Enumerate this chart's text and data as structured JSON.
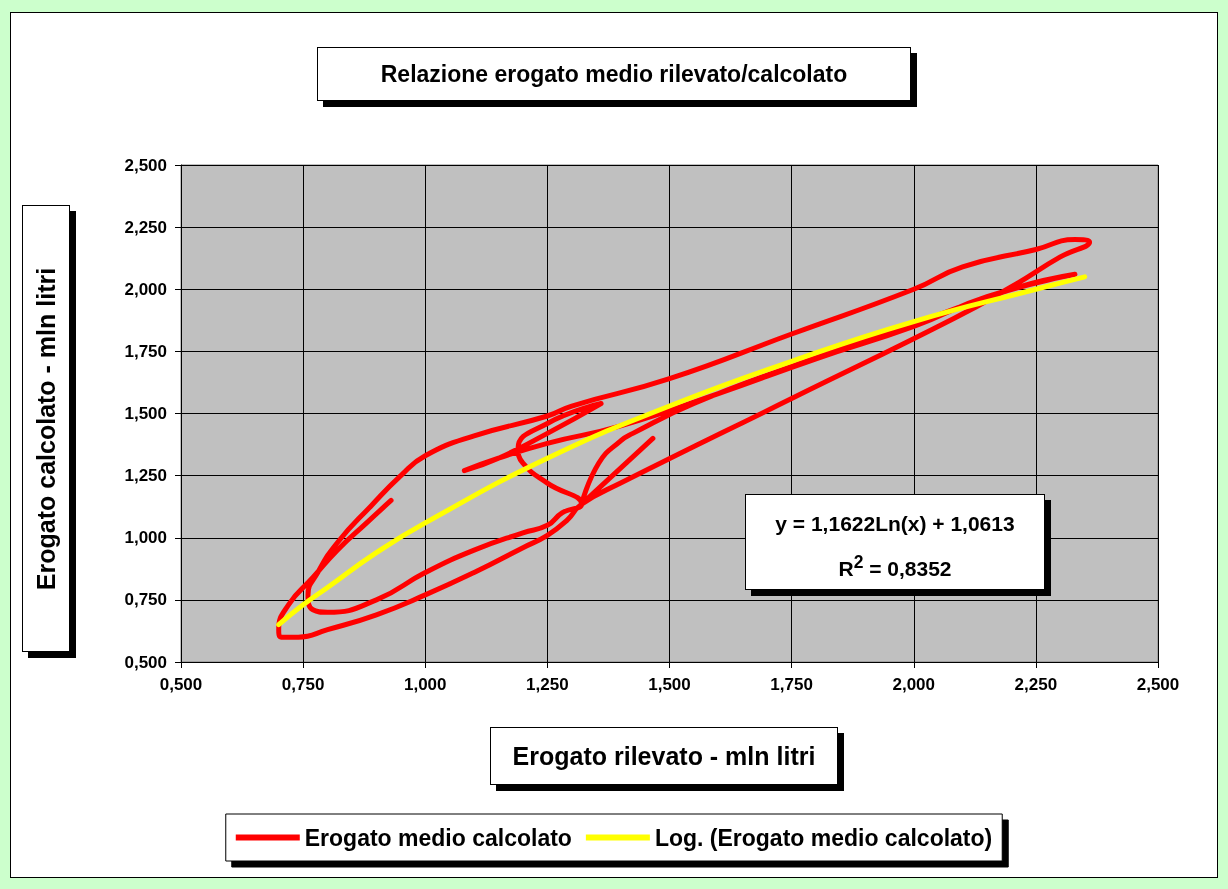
{
  "chart_data": {
    "type": "line",
    "title": "Relazione erogato medio rilevato/calcolato",
    "xlabel": "Erogato rilevato - mln litri",
    "ylabel": "Erogato calcolato - mln litri",
    "xlim": [
      0.5,
      2.5
    ],
    "ylim": [
      0.5,
      2.5
    ],
    "xticks": [
      {
        "value": 0.5,
        "label": "0,500"
      },
      {
        "value": 0.75,
        "label": "0,750"
      },
      {
        "value": 1,
        "label": "1,000"
      },
      {
        "value": 1.25,
        "label": "1,250"
      },
      {
        "value": 1.5,
        "label": "1,500"
      },
      {
        "value": 1.75,
        "label": "1,750"
      },
      {
        "value": 2,
        "label": "2,000"
      },
      {
        "value": 2.25,
        "label": "2,250"
      },
      {
        "value": 2.5,
        "label": "2,500"
      }
    ],
    "yticks": [
      {
        "value": 0.5,
        "label": "0,500"
      },
      {
        "value": 0.75,
        "label": "0,750"
      },
      {
        "value": 1,
        "label": "1,000"
      },
      {
        "value": 1.25,
        "label": "1,250"
      },
      {
        "value": 1.5,
        "label": "1,500"
      },
      {
        "value": 1.75,
        "label": "1,750"
      },
      {
        "value": 2,
        "label": "2,000"
      },
      {
        "value": 2.25,
        "label": "2,250"
      },
      {
        "value": 2.5,
        "label": "2,500"
      }
    ],
    "series": [
      {
        "name": "Erogato medio calcolato",
        "color": "#ff0000",
        "x": [
          0.93,
          0.88,
          0.82,
          0.77,
          0.72,
          0.7,
          0.705,
          0.74,
          0.8,
          0.9,
          1.0,
          1.1,
          1.2,
          1.25,
          1.29,
          1.32,
          1.4,
          1.75,
          2.08,
          2.2,
          2.3,
          2.36,
          2.33,
          2.25,
          2.1,
          2.0,
          1.75,
          1.5,
          1.3,
          1.25,
          1.1,
          1.0,
          0.95,
          0.89,
          0.82,
          0.78,
          0.76,
          0.77,
          0.8,
          0.9,
          1.0,
          1.1,
          1.2,
          1.25,
          1.28,
          1.32,
          1.25,
          1.2,
          1.19,
          1.25,
          1.36,
          1.25,
          1.15,
          1.08,
          1.15,
          1.25,
          1.4,
          1.6,
          1.8,
          2.0,
          2.15,
          2.33,
          2.2,
          2.0,
          1.75,
          1.55,
          1.425,
          1.4,
          1.355,
          1.32,
          1.466
        ],
        "values": [
          1.15,
          1.06,
          0.95,
          0.84,
          0.73,
          0.63,
          0.6,
          0.6,
          0.63,
          0.69,
          0.77,
          0.86,
          0.96,
          1.01,
          1.07,
          1.135,
          1.22,
          1.56,
          1.88,
          2.01,
          2.13,
          2.19,
          2.2,
          2.16,
          2.09,
          2.0,
          1.82,
          1.64,
          1.53,
          1.49,
          1.41,
          1.33,
          1.25,
          1.13,
          0.98,
          0.86,
          0.77,
          0.71,
          0.7,
          0.75,
          0.86,
          0.95,
          1.02,
          1.05,
          1.1,
          1.135,
          1.22,
          1.3,
          1.36,
          1.46,
          1.54,
          1.42,
          1.32,
          1.27,
          1.32,
          1.38,
          1.45,
          1.58,
          1.72,
          1.85,
          1.97,
          2.06,
          2.0,
          1.86,
          1.69,
          1.54,
          1.42,
          1.39,
          1.3,
          1.135,
          1.4
        ]
      },
      {
        "name": "Log. (Erogato medio calcolato)",
        "color": "#ffff00",
        "x": [
          0.7,
          0.75,
          0.8,
          0.9,
          1.0,
          1.25,
          1.5,
          1.75,
          2.0,
          2.25,
          2.35
        ],
        "values": [
          0.65,
          0.73,
          0.8,
          0.94,
          1.06,
          1.32,
          1.53,
          1.71,
          1.87,
          2.0,
          2.05
        ]
      }
    ],
    "annotations": [
      "y = 1,1622Ln(x) + 1,0613",
      "R$^{2}$ = 0,8352"
    ],
    "grid": true,
    "legend": "bottom",
    "marker": "none",
    "line_style": "solid"
  }
}
